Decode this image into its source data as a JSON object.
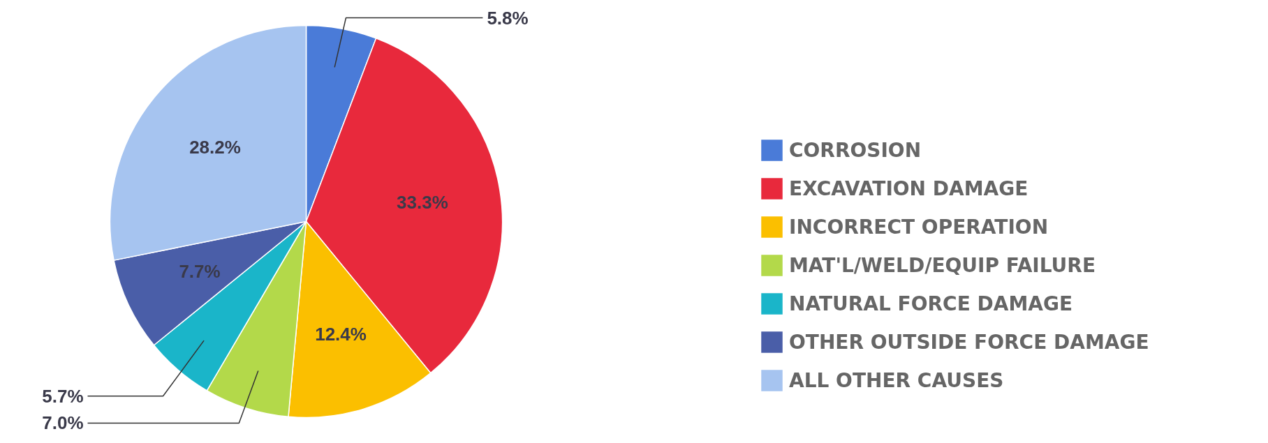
{
  "chart_data": {
    "type": "pie",
    "categories": [
      "CORROSION",
      "EXCAVATION DAMAGE",
      "INCORRECT OPERATION",
      "MAT'L/WELD/EQUIP FAILURE",
      "NATURAL FORCE DAMAGE",
      "OTHER OUTSIDE FORCE DAMAGE",
      "ALL OTHER CAUSES"
    ],
    "values": [
      5.8,
      33.3,
      12.4,
      7.0,
      5.7,
      7.7,
      28.2
    ],
    "colors": [
      "#4a7bd8",
      "#e8293c",
      "#fbbf00",
      "#b3d94a",
      "#1ab5c9",
      "#4a5ea8",
      "#a6c4f0"
    ],
    "value_labels": [
      "5.8%",
      "33.3%",
      "12.4%",
      "7.0%",
      "5.7%",
      "7.7%",
      "28.2%"
    ],
    "legend": "right"
  }
}
